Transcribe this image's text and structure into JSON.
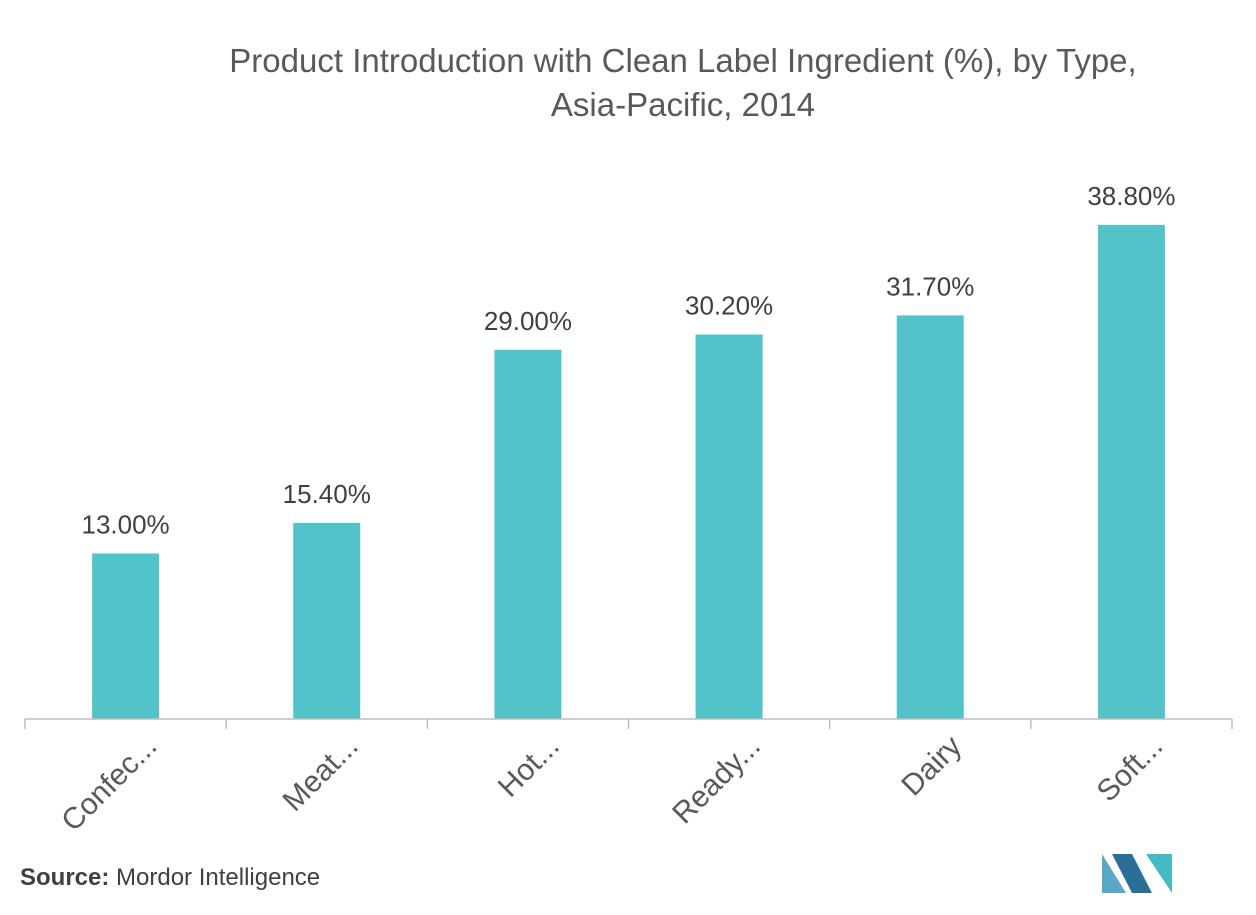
{
  "chart_data": {
    "type": "bar",
    "title_lines": [
      "Product Introduction with Clean Label Ingredient (%), by Type,",
      "Asia-Pacific, 2014"
    ],
    "categories": [
      "Confec...",
      "Meat...",
      "Hot...",
      "Ready...",
      "Dairy",
      "Soft..."
    ],
    "values": [
      13.0,
      15.4,
      29.0,
      30.2,
      31.7,
      38.8
    ],
    "data_labels": [
      "13.00%",
      "15.40%",
      "29.00%",
      "30.20%",
      "31.70%",
      "38.80%"
    ],
    "unit": "%",
    "ylim": [
      0,
      38.8
    ],
    "grid": false,
    "legend": "none",
    "bar_color": "#52c3c9",
    "axis_color": "#bfbfbf"
  },
  "source": {
    "label": "Source:",
    "text": " Mordor Intelligence"
  },
  "logo": {
    "colors": [
      "#5aa8c8",
      "#2c6f96",
      "#45b9c4"
    ]
  }
}
